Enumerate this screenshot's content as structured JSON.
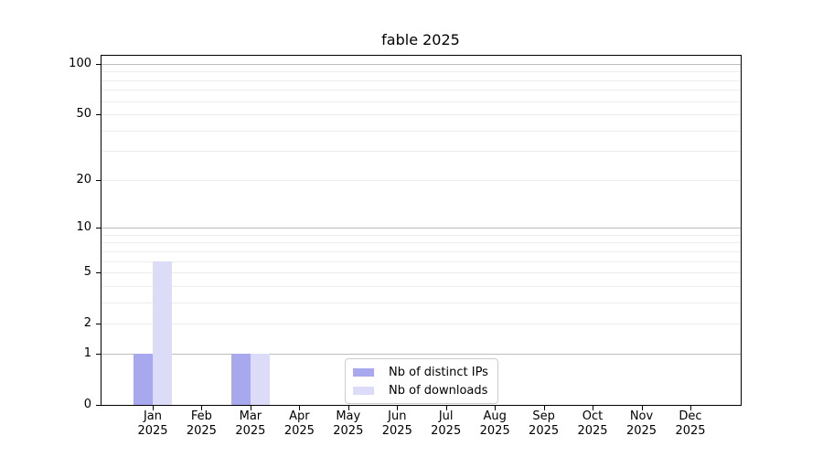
{
  "chart_data": {
    "type": "bar",
    "title": "fable 2025",
    "categories": [
      "Jan 2025",
      "Feb 2025",
      "Mar 2025",
      "Apr 2025",
      "May 2025",
      "Jun 2025",
      "Jul 2025",
      "Aug 2025",
      "Sep 2025",
      "Oct 2025",
      "Nov 2025",
      "Dec 2025"
    ],
    "series": [
      {
        "name": "Nb of distinct IPs",
        "color": "#a8a8ef",
        "values": [
          1,
          0,
          1,
          0,
          0,
          0,
          0,
          0,
          0,
          0,
          0,
          0
        ]
      },
      {
        "name": "Nb of downloads",
        "color": "#dcdcf8",
        "values": [
          6,
          0,
          1,
          0,
          0,
          0,
          0,
          0,
          0,
          0,
          0,
          0
        ]
      }
    ],
    "xlabel": "",
    "ylabel": "",
    "y_scale": "log1p",
    "ylim": [
      0,
      113
    ],
    "y_ticks": [
      0,
      1,
      2,
      5,
      10,
      20,
      50,
      100
    ],
    "y_major_gridlines": [
      1,
      10,
      100
    ],
    "y_minor_gridlines": [
      2,
      3,
      4,
      5,
      6,
      7,
      8,
      9,
      20,
      30,
      40,
      50,
      60,
      70,
      80,
      90
    ],
    "grid": "horizontal",
    "legend_position": "lower-center-inside",
    "colors": {
      "background": "#ffffff",
      "spine": "#000000",
      "major_grid": "#bdbdbd",
      "minor_grid": "#ededed",
      "legend_border": "#cccccc",
      "text": "#000000"
    }
  }
}
